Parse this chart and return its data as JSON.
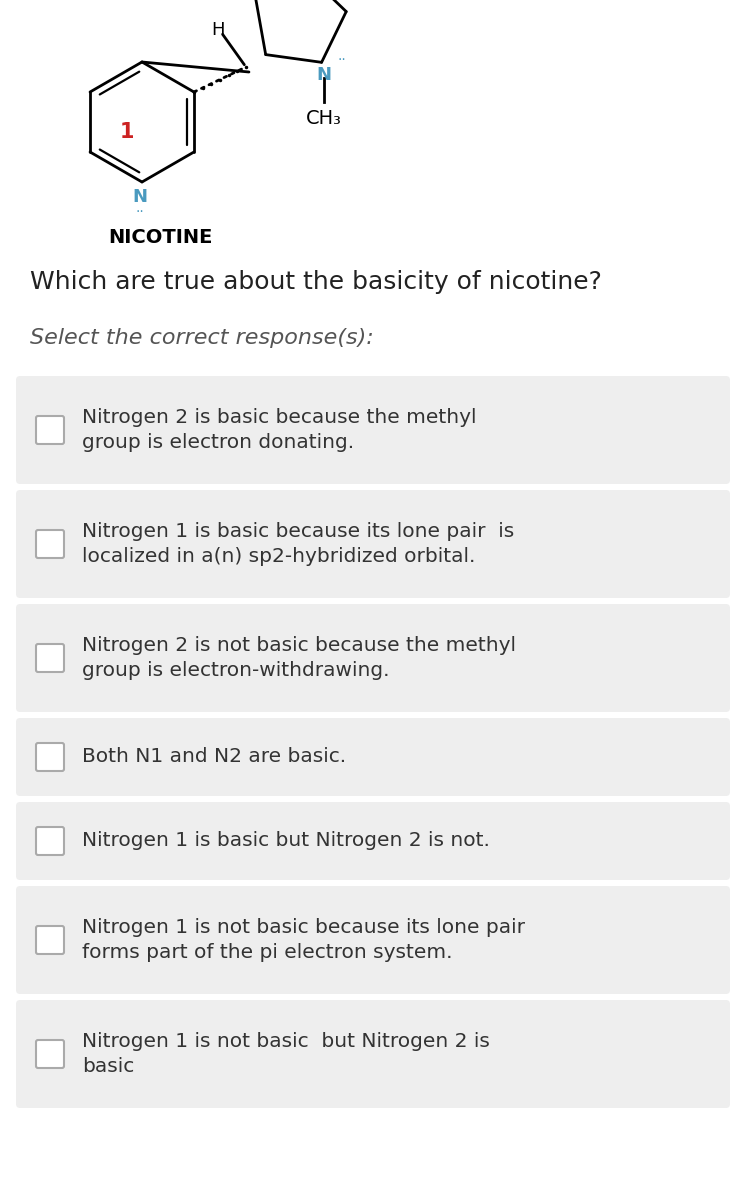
{
  "title_question": "Which are true about the basicity of nicotine?",
  "subtitle": "Select the correct response(s):",
  "nicotine_label": "NICOTINE",
  "options": [
    "Nitrogen 2 is basic because the methyl\ngroup is electron donating.",
    "Nitrogen 1 is basic because its lone pair  is\nlocalized in a(n) sp2-hybridized orbital.",
    "Nitrogen 2 is not basic because the methyl\ngroup is electron-withdrawing.",
    "Both N1 and N2 are basic.",
    "Nitrogen 1 is basic but Nitrogen 2 is not.",
    "Nitrogen 1 is not basic because its lone pair\nforms part of the pi electron system.",
    "Nitrogen 1 is not basic  but Nitrogen 2 is\nbasic"
  ],
  "bg_color": "#ffffff",
  "option_bg_color": "#eeeeee",
  "option_border_color": "#cccccc",
  "text_color": "#333333",
  "question_color": "#222222",
  "subtitle_color": "#555555",
  "checkbox_color": "#aaaaaa",
  "label1_color": "#cc2222",
  "label2_color": "#cc2222",
  "nitrogen_color": "#4a9abf",
  "fig_width": 7.46,
  "fig_height": 12.0,
  "dpi": 100
}
